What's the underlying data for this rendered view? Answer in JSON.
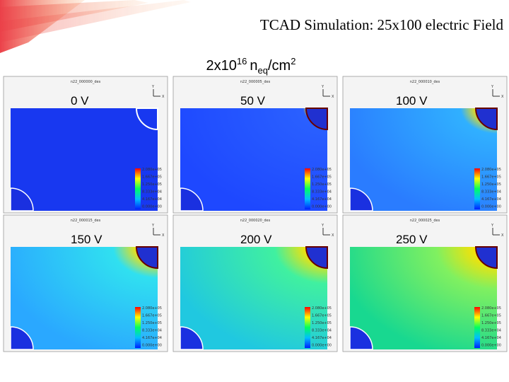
{
  "title": "TCAD  Simulation: 25x100 electric Field",
  "subtitle": {
    "base": "2x10",
    "exponent": "16",
    "symbol": "n",
    "subscript": "eq",
    "unit": "/cm",
    "unit_exponent": "2"
  },
  "axis_labels": {
    "y": "Y",
    "x": "X"
  },
  "panels": [
    {
      "label": "0 V",
      "file": "n22_000000_des",
      "scale": [
        "2.080e+05",
        "1.667e+05",
        "1.250e+05",
        "8.333e+04",
        "4.167e+04",
        "0.000e+00"
      ]
    },
    {
      "label": "50 V",
      "file": "n22_000005_des",
      "scale": [
        "2.080e+05",
        "1.667e+05",
        "1.250e+05",
        "8.333e+04",
        "4.167e+04",
        "0.000e+00"
      ]
    },
    {
      "label": "100 V",
      "file": "n22_000010_des",
      "scale": [
        "2.080e+05",
        "1.667e+05",
        "1.250e+05",
        "8.333e+04",
        "4.167e+04",
        "0.000e+00"
      ]
    },
    {
      "label": "150 V",
      "file": "n22_000015_des",
      "scale": [
        "2.080e+05",
        "1.667e+05",
        "1.250e+05",
        "8.333e+04",
        "4.167e+04",
        "0.000e+00"
      ]
    },
    {
      "label": "200 V",
      "file": "n22_000020_des",
      "scale": [
        "2.080e+05",
        "1.667e+05",
        "1.250e+05",
        "8.333e+04",
        "4.167e+04",
        "0.000e+00"
      ]
    },
    {
      "label": "250 V",
      "file": "n22_000025_des",
      "scale": [
        "2.080e+05",
        "1.667e+05",
        "1.250e+05",
        "8.333e+04",
        "4.167e+04",
        "0.000e+00"
      ]
    }
  ]
}
